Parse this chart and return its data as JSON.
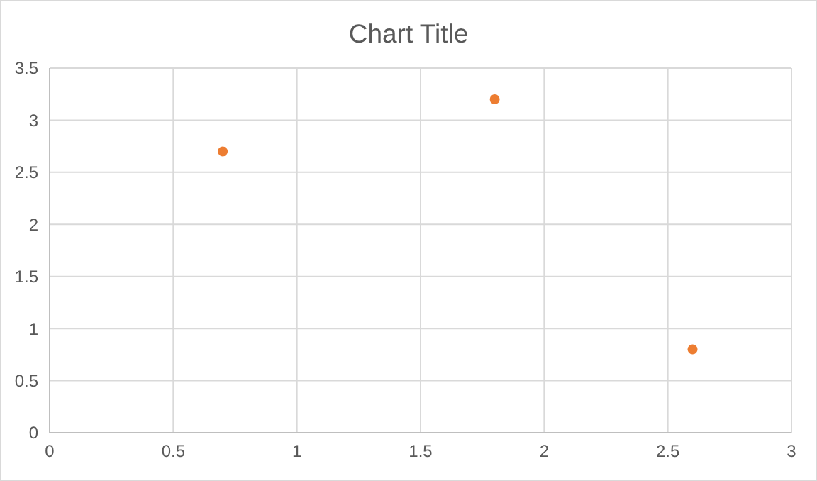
{
  "chart_data": {
    "type": "scatter",
    "title": "Chart Title",
    "x": [
      0.7,
      1.8,
      2.6
    ],
    "series": [
      {
        "color": "#ed7d31",
        "values": [
          2.7,
          3.2,
          0.8
        ]
      }
    ],
    "xlim": [
      0,
      3
    ],
    "xticks": [
      0,
      0.5,
      1,
      1.5,
      2,
      2.5,
      3
    ],
    "ylim": [
      0,
      3.5
    ],
    "yticks": [
      0,
      0.5,
      1,
      1.5,
      2,
      2.5,
      3,
      3.5
    ],
    "grid": true,
    "marker": "circle"
  }
}
